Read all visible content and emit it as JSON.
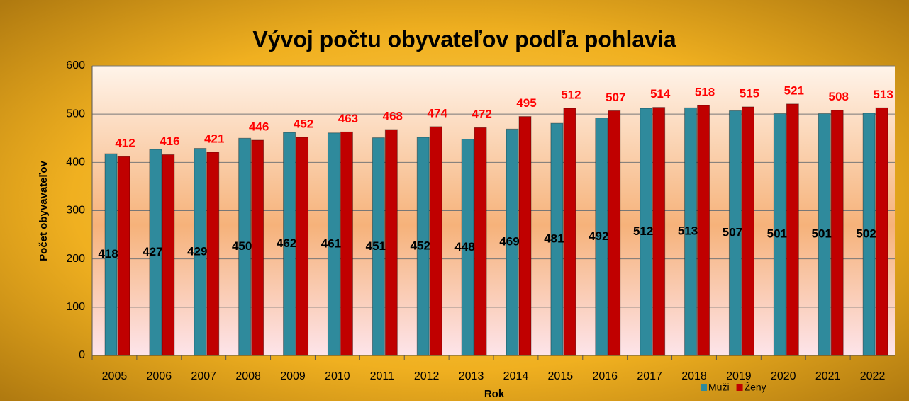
{
  "chart_data": {
    "type": "bar",
    "title": "Vývoj počtu obyvateľov podľa pohlavia",
    "x_label": "Rok",
    "y_label": "Počet obyvavateľov",
    "categories": [
      "2005",
      "2006",
      "2007",
      "2008",
      "2009",
      "2010",
      "2011",
      "2012",
      "2013",
      "2014",
      "2015",
      "2016",
      "2017",
      "2018",
      "2019",
      "2020",
      "2021",
      "2022"
    ],
    "series": [
      {
        "name": "Muži",
        "color": "#2f8a9c",
        "label_color": "#000000",
        "values": [
          418,
          427,
          429,
          450,
          462,
          461,
          451,
          452,
          448,
          469,
          481,
          492,
          512,
          513,
          507,
          501,
          501,
          502
        ]
      },
      {
        "name": "Ženy",
        "color": "#c00000",
        "label_color": "#ff0000",
        "values": [
          412,
          416,
          421,
          446,
          452,
          463,
          468,
          474,
          472,
          495,
          512,
          507,
          514,
          518,
          515,
          521,
          508,
          513
        ]
      }
    ],
    "ylim": [
      0,
      600
    ],
    "yticks": [
      0,
      100,
      200,
      300,
      400,
      500,
      600
    ],
    "grid": true
  }
}
